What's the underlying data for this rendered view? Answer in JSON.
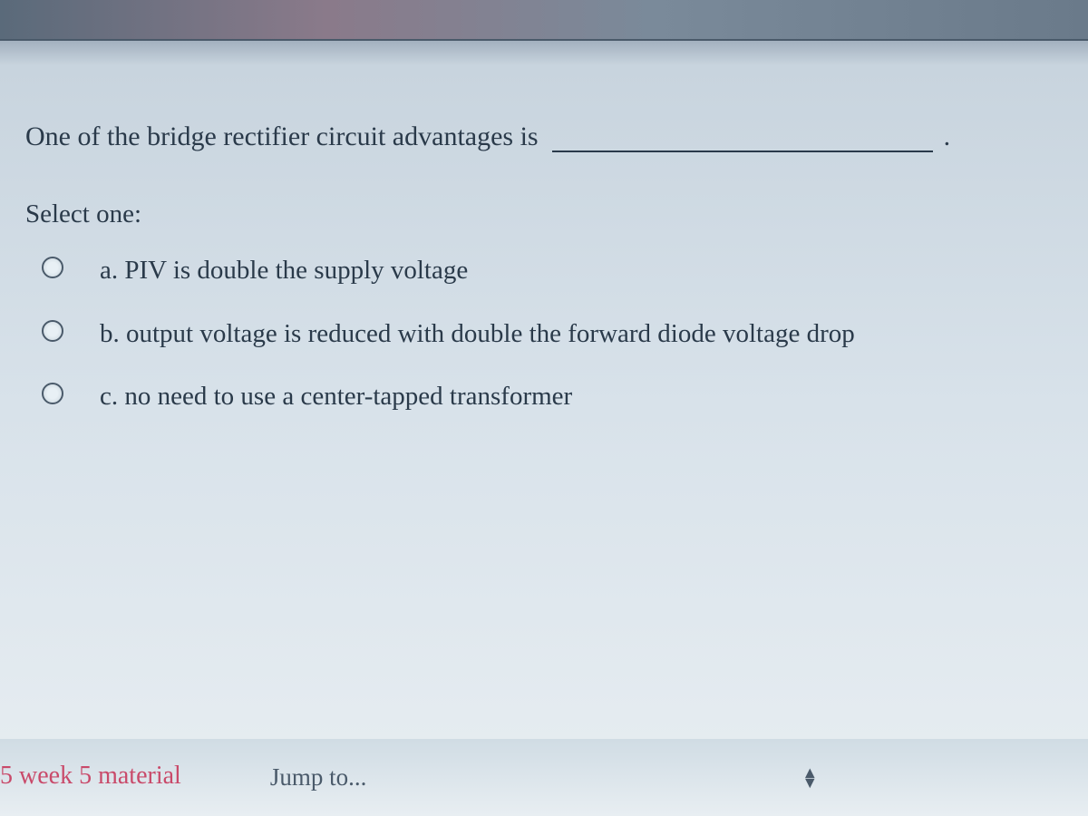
{
  "question": {
    "stem": "One of the bridge rectifier circuit advantages is",
    "blank_period": ".",
    "select_prompt": "Select one:",
    "options": [
      {
        "letter": "a.",
        "text": "PIV is double the supply voltage"
      },
      {
        "letter": "b.",
        "text": "output voltage is reduced with double the forward diode voltage drop"
      },
      {
        "letter": "c.",
        "text": "no need to use a center-tapped transformer"
      }
    ]
  },
  "navigation": {
    "prev_link": "5 week 5 material",
    "jump_to_label": "Jump to..."
  },
  "styling": {
    "text_color": "#2a3a4a",
    "link_color": "#c94a6a",
    "background_gradient_top": "#c8d4de",
    "background_gradient_bottom": "#e8eef2",
    "question_fontsize": 30,
    "option_fontsize": 29,
    "font_family": "Georgia serif"
  }
}
